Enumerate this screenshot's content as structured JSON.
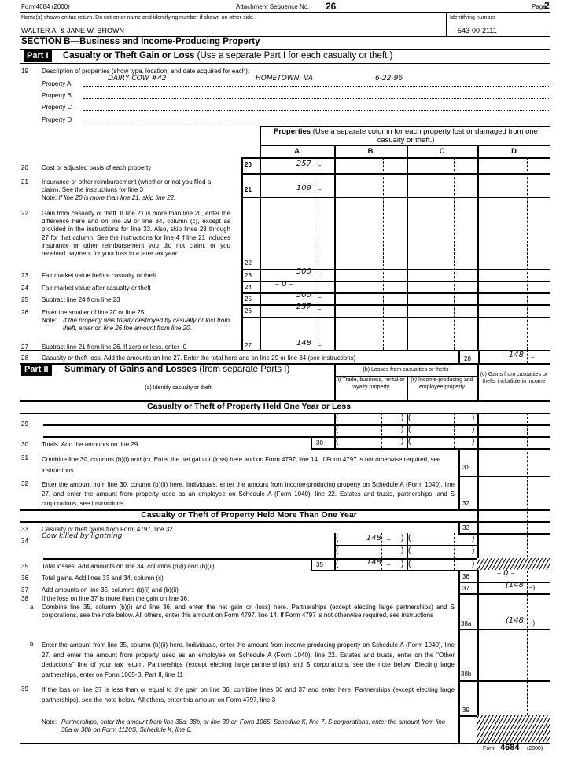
{
  "header": {
    "form_label": "Form4684 (2000)",
    "seq_label": "Attachment Sequence No.",
    "seq_no": "26",
    "page_label": "Page",
    "page_no": "2"
  },
  "names": {
    "label": "Name(s) shown on tax return. Do not enter name and identifying number if shown on other side.",
    "value": "WALTER A. & JANE W. BROWN",
    "id_label": "Identifying number",
    "id_value": "543-00-2111"
  },
  "section_b": {
    "title": "SECTION B—Business and Income-Producing Property"
  },
  "part1": {
    "badge": "Part I",
    "title": "Casualty or Theft Gain or Loss",
    "subtitle": "(Use a separate Part I for each casualty or theft.)"
  },
  "line19": {
    "num": "19",
    "text": "Description of properties (show type, location, and date acquired for each):",
    "properties": [
      {
        "label": "Property A",
        "type": "DAIRY COW #42",
        "location": "HOMETOWN, VA",
        "date": "6-22-96"
      },
      {
        "label": "Property B"
      },
      {
        "label": "Property C"
      },
      {
        "label": "Property D"
      }
    ]
  },
  "properties_header": {
    "bold": "Properties",
    "text": "(Use a separate column for each property lost or damaged from one casualty or theft.)",
    "columns": [
      "A",
      "B",
      "C",
      "D"
    ]
  },
  "lines": {
    "l20": {
      "num": "20",
      "text": "Cost or adjusted basis of each property",
      "a": "257",
      "a_cents": "–"
    },
    "l21": {
      "num": "21",
      "text": "Insurance or other reimbursement (whether or not you filed a claim). See the instructions for line 3",
      "note_label": "Note:",
      "note": "If line 20 is more than line 21, skip line 22.",
      "a": "109",
      "a_cents": "–"
    },
    "l22": {
      "num": "22",
      "text": "Gain from casualty or theft. If line 21 is more than line 20, enter the difference here and on line 29 or line 34, column (c), except as provided in the instructions for line 33. Also, skip lines 23 through 27 for that column. See the instructions for line 4 if line 21 includes insurance or other reimbursement you did not claim, or you received payment for your loss in a later tax year"
    },
    "l23": {
      "num": "23",
      "text": "Fair market value before casualty or theft",
      "a": "500",
      "a_cents": "–"
    },
    "l24": {
      "num": "24",
      "text": "Fair market value after casualty or theft",
      "a": "– 0 –"
    },
    "l25": {
      "num": "25",
      "text": "Subtract line 24 from line 23",
      "a": "500",
      "a_cents": "–"
    },
    "l26": {
      "num": "26",
      "text": "Enter the smaller of line 20 or line 25",
      "note_label": "Note:",
      "note": "If the property was totally destroyed by casualty or lost from theft, enter on line 26 the amount from line 20.",
      "a": "257",
      "a_cents": "–"
    },
    "l27": {
      "num": "27",
      "text": "Subtract line 21 from line 26. If zero or less, enter -0-",
      "a": "148",
      "a_cents": "–"
    },
    "l28": {
      "num": "28",
      "text": "Casualty or theft loss. Add the amounts on line 27. Enter the total here and on line 29 or line 34 (see instructions)",
      "value": "148",
      "cents": "–"
    }
  },
  "part2": {
    "badge": "Part II",
    "title": "Summary of Gains and Losses",
    "subtitle": "(from separate Parts I)",
    "col_a": "(a) Identify casualty or theft",
    "col_b": "(b) Losses from casualties or thefts",
    "col_b1_label": "(i)",
    "col_b1": "Trade, business, rental or royalty property",
    "col_b2_label": "(ii)",
    "col_b2": "Income-producing and employee property",
    "col_c": "(c) Gains from casualties or thefts includible in income",
    "short_heading": "Casualty or Theft of Property Held One Year or Less",
    "long_heading": "Casualty or Theft of Property Held More Than One Year",
    "l29": {
      "num": "29"
    },
    "l30": {
      "num": "30",
      "text": "Totals. Add the amounts on line 29"
    },
    "l31": {
      "num": "31",
      "text": "Combine line 30, columns (b)(i) and (c). Enter the net gain or (loss) here and on Form 4797, line 14. If Form 4797 is not otherwise required, see instructions"
    },
    "l32": {
      "num": "32",
      "text": "Enter the amount from line 30, column (b)(ii) here. Individuals, enter the amount from income-producing property on Schedule A (Form 1040), line 27, and enter the amount from property used as an employee on Schedule A (Form 1040), line 22. Estates and trusts, partnerships, and S corporations, see instructions"
    },
    "l33": {
      "num": "33",
      "text": "Casualty or theft gains from Form 4797, line 32"
    },
    "l34": {
      "num": "34",
      "description": "Cow killed by lightning",
      "b1": "148",
      "b1_cents": "–"
    },
    "l35": {
      "num": "35",
      "text": "Total losses. Add amounts on line 34, columns (b)(i) and (b)(ii)",
      "b1": "148",
      "b1_cents": "–"
    },
    "l36": {
      "num": "36",
      "text": "Total gains. Add lines 33 and 34, column (c)",
      "value": "– 0 –"
    },
    "l37": {
      "num": "37",
      "text": "Add amounts on line 35, columns (b)(i) and (b)(ii)",
      "value": "(148",
      "cents": "–)"
    },
    "l38": {
      "num": "38",
      "text": "If the loss on line 37 is more than the gain on line 36:"
    },
    "l38a": {
      "num": "a",
      "box": "38a",
      "text": "Combine line 35, column (b)(i) and line 36, and enter the net gain or (loss) here. Partnerships (except electing large partnerships) and S corporations, see the note below. All others, enter this amount on Form 4797, line 14. If Form 4797 is not otherwise required, see instructions",
      "value": "(148",
      "cents": "–)"
    },
    "l38b": {
      "num": "b",
      "box": "38b",
      "text": "Enter the amount from line 35, column (b)(ii) here. Individuals, enter the amount from income-producing property on Schedule A (Form 1040), line 27, and enter the amount from property used as an employee on Schedule A (Form 1040), line 22. Estates and trusts, enter on the \"Other deductions\" line of your tax return. Partnerships (except electing large partnerships) and S corporations, see the note below. Electing large partnerships, enter on Form 1065-B, Part II, line 11"
    },
    "l39": {
      "num": "39",
      "text": "If the loss on line 37 is less than or equal to the gain on line 36, combine lines 36 and 37 and enter here. Partnerships (except electing large partnerships), see the note below. All others, enter this amount on Form 4797, line 3"
    },
    "note_label": "Note:",
    "note": "Partnerships, enter the amount from line 38a, 38b, or line 39 on Form 1065, Schedule K, line 7. S corporations, enter the amount from line 38a or 38b on Form 1120S, Schedule K, line 6."
  },
  "footer": {
    "form_word": "Form",
    "form_no": "4684",
    "year": "(2000)"
  }
}
